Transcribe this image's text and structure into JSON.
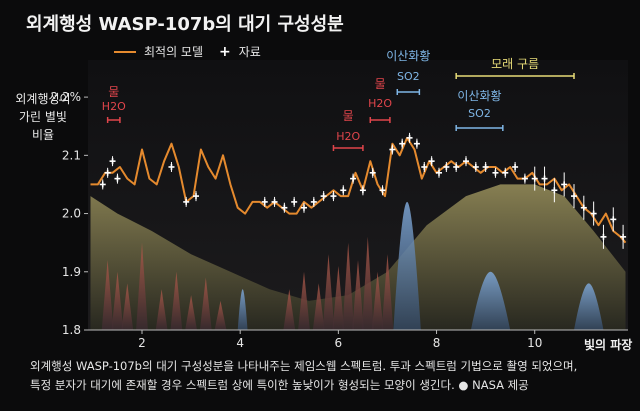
{
  "title": "외계행성 WASP-107b의 대기 구성성분",
  "legend": {
    "model_label": "최적의 모델",
    "data_label": "자료"
  },
  "ylabel_lines": [
    "외계행성이",
    "가린 별빛",
    "비율"
  ],
  "xlabel": "빛의 파장",
  "caption": {
    "line1": "외계행성 WASP-107b의 대기 구성성분을 나타내주는 제임스웹 스펙트럼. 투과 스펙트럼 기법으로 촬영 되었으며,",
    "line2": "특정 분자가 대기에 존재할 경우 스펙트럼 상에 특이한 높낮이가 형성되는 모양이 생긴다.",
    "credit": "● NASA 제공"
  },
  "colors": {
    "model": "#e58a2e",
    "data": "#ffffff",
    "water_label": "#e0454b",
    "so2_label": "#7fb6e6",
    "sand_label": "#e8dc78",
    "background": "#0b0b0c"
  },
  "chart_data": {
    "type": "line",
    "xlim": [
      0.9,
      11.9
    ],
    "ylim": [
      1.8,
      2.25
    ],
    "x_ticks": [
      2,
      4,
      6,
      8,
      10
    ],
    "y_ticks": [
      1.8,
      1.9,
      2.0,
      2.1,
      2.2
    ],
    "y_tick_labels": [
      "1.8",
      "1.9",
      "2.0",
      "2.1",
      "2.2%"
    ],
    "series": [
      {
        "name": "최적의 모델",
        "x": [
          0.95,
          1.1,
          1.25,
          1.4,
          1.55,
          1.7,
          1.85,
          2.0,
          2.15,
          2.3,
          2.45,
          2.6,
          2.75,
          2.9,
          3.05,
          3.2,
          3.35,
          3.5,
          3.65,
          3.8,
          3.95,
          4.1,
          4.25,
          4.4,
          4.55,
          4.7,
          4.85,
          5.0,
          5.15,
          5.3,
          5.45,
          5.6,
          5.75,
          5.9,
          6.05,
          6.2,
          6.35,
          6.5,
          6.65,
          6.8,
          6.95,
          7.1,
          7.25,
          7.4,
          7.55,
          7.7,
          7.85,
          8.0,
          8.15,
          8.3,
          8.45,
          8.6,
          8.75,
          8.9,
          9.05,
          9.2,
          9.35,
          9.5,
          9.65,
          9.8,
          9.95,
          10.1,
          10.25,
          10.4,
          10.55,
          10.7,
          10.85,
          11.0,
          11.15,
          11.3,
          11.45,
          11.6,
          11.75,
          11.85
        ],
        "y": [
          2.05,
          2.05,
          2.07,
          2.07,
          2.08,
          2.06,
          2.05,
          2.11,
          2.06,
          2.05,
          2.09,
          2.12,
          2.08,
          2.02,
          2.03,
          2.11,
          2.08,
          2.06,
          2.1,
          2.05,
          2.01,
          2.0,
          2.02,
          2.02,
          2.01,
          2.02,
          2.01,
          2.0,
          2.0,
          2.02,
          2.01,
          2.02,
          2.03,
          2.04,
          2.03,
          2.03,
          2.07,
          2.04,
          2.09,
          2.05,
          2.03,
          2.12,
          2.1,
          2.13,
          2.11,
          2.06,
          2.09,
          2.07,
          2.08,
          2.09,
          2.08,
          2.09,
          2.08,
          2.07,
          2.08,
          2.08,
          2.07,
          2.08,
          2.06,
          2.06,
          2.07,
          2.05,
          2.05,
          2.06,
          2.04,
          2.05,
          2.03,
          2.01,
          2.0,
          1.98,
          2.0,
          1.97,
          1.96,
          1.95
        ]
      },
      {
        "name": "자료",
        "x": [
          1.2,
          1.3,
          1.4,
          1.5,
          2.6,
          2.9,
          3.1,
          4.5,
          4.7,
          4.9,
          5.1,
          5.3,
          5.5,
          5.7,
          5.9,
          6.1,
          6.3,
          6.5,
          6.7,
          6.9,
          7.1,
          7.3,
          7.45,
          7.6,
          7.75,
          7.9,
          8.05,
          8.2,
          8.4,
          8.6,
          8.8,
          9.0,
          9.2,
          9.4,
          9.6,
          9.8,
          10.0,
          10.2,
          10.4,
          10.6,
          10.8,
          11.0,
          11.2,
          11.4,
          11.6,
          11.8
        ],
        "y": [
          2.05,
          2.07,
          2.09,
          2.06,
          2.08,
          2.02,
          2.03,
          2.02,
          2.02,
          2.01,
          2.02,
          2.01,
          2.02,
          2.03,
          2.03,
          2.04,
          2.06,
          2.04,
          2.07,
          2.04,
          2.11,
          2.12,
          2.13,
          2.12,
          2.08,
          2.09,
          2.07,
          2.08,
          2.08,
          2.09,
          2.08,
          2.08,
          2.07,
          2.07,
          2.08,
          2.06,
          2.06,
          2.06,
          2.04,
          2.05,
          2.03,
          2.01,
          2.0,
          1.96,
          1.99,
          1.96
        ]
      }
    ],
    "annotations": [
      {
        "label": "물",
        "sub": "H2O",
        "x_range": [
          1.3,
          1.55
        ],
        "color": "water"
      },
      {
        "label": "물",
        "sub": "H2O",
        "x_range": [
          5.9,
          6.5
        ],
        "color": "water"
      },
      {
        "label": "물",
        "sub": "H2O",
        "x_range": [
          6.65,
          7.05
        ],
        "color": "water"
      },
      {
        "label": "이산화황",
        "sub": "SO2",
        "x_range": [
          7.2,
          7.65
        ],
        "color": "so2"
      },
      {
        "label": "모래 구름",
        "sub": "",
        "x_range": [
          8.4,
          10.8
        ],
        "color": "sand"
      },
      {
        "label": "이산화황",
        "sub": "SO2",
        "x_range": [
          8.4,
          9.35
        ],
        "color": "so2"
      }
    ]
  }
}
